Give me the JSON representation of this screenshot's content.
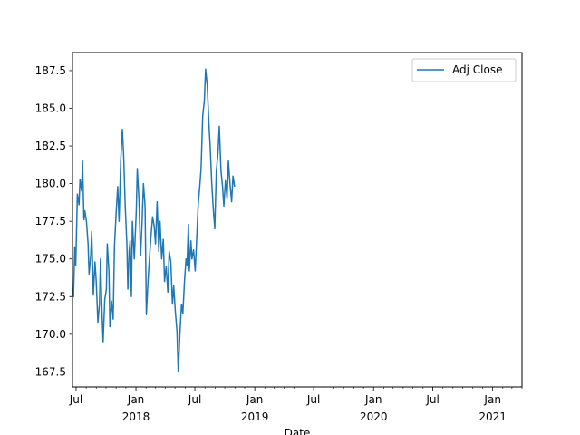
{
  "chart_data": {
    "type": "line",
    "title": "",
    "xlabel": "Date",
    "ylabel": "",
    "series_color": "#1f77b4",
    "legend": {
      "placement": "upper-right",
      "entries": [
        "Adj Close"
      ]
    },
    "grid": false,
    "xlim": [
      "2017-06-20",
      "2021-04-01"
    ],
    "ylim": [
      166.5,
      188.7
    ],
    "y_ticks": [
      {
        "value": 167.5,
        "label": "167.5"
      },
      {
        "value": 170.0,
        "label": "170.0"
      },
      {
        "value": 172.5,
        "label": "172.5"
      },
      {
        "value": 175.0,
        "label": "175.0"
      },
      {
        "value": 177.5,
        "label": "177.5"
      },
      {
        "value": 180.0,
        "label": "180.0"
      },
      {
        "value": 182.5,
        "label": "182.5"
      },
      {
        "value": 185.0,
        "label": "185.0"
      },
      {
        "value": 187.5,
        "label": "187.5"
      }
    ],
    "x_major_ticks": [
      {
        "date": "2017-07-01",
        "label": "Jul",
        "year": ""
      },
      {
        "date": "2018-01-01",
        "label": "Jan",
        "year": "2018"
      },
      {
        "date": "2018-07-01",
        "label": "Jul",
        "year": ""
      },
      {
        "date": "2019-01-01",
        "label": "Jan",
        "year": "2019"
      },
      {
        "date": "2019-07-01",
        "label": "Jul",
        "year": ""
      },
      {
        "date": "2020-01-01",
        "label": "Jan",
        "year": "2020"
      },
      {
        "date": "2020-07-01",
        "label": "Jul",
        "year": ""
      },
      {
        "date": "2021-01-01",
        "label": "Jan",
        "year": "2021"
      }
    ],
    "series": [
      {
        "name": "Adj Close",
        "x": [
          "2017-06-20",
          "2017-06-23",
          "2017-06-27",
          "2017-06-30",
          "2017-07-05",
          "2017-07-10",
          "2017-07-13",
          "2017-07-18",
          "2017-07-21",
          "2017-07-25",
          "2017-07-28",
          "2017-08-02",
          "2017-08-07",
          "2017-08-10",
          "2017-08-15",
          "2017-08-18",
          "2017-08-23",
          "2017-08-28",
          "2017-09-01",
          "2017-09-06",
          "2017-09-11",
          "2017-09-14",
          "2017-09-19",
          "2017-09-22",
          "2017-09-27",
          "2017-10-02",
          "2017-10-05",
          "2017-10-10",
          "2017-10-13",
          "2017-10-18",
          "2017-10-23",
          "2017-10-27",
          "2017-11-01",
          "2017-11-06",
          "2017-11-10",
          "2017-11-15",
          "2017-11-20",
          "2017-11-24",
          "2017-11-29",
          "2017-12-04",
          "2017-12-07",
          "2017-12-11",
          "2017-12-14",
          "2017-12-18",
          "2017-12-21",
          "2017-12-27",
          "2018-01-02",
          "2018-01-05",
          "2018-01-10",
          "2018-01-15",
          "2018-01-19",
          "2018-01-24",
          "2018-01-29",
          "2018-02-02",
          "2018-02-07",
          "2018-02-12",
          "2018-02-16",
          "2018-02-21",
          "2018-02-26",
          "2018-03-02",
          "2018-03-07",
          "2018-03-12",
          "2018-03-16",
          "2018-03-21",
          "2018-03-26",
          "2018-03-30",
          "2018-04-04",
          "2018-04-09",
          "2018-04-13",
          "2018-04-18",
          "2018-04-23",
          "2018-04-27",
          "2018-05-02",
          "2018-05-07",
          "2018-05-11",
          "2018-05-16",
          "2018-05-21",
          "2018-05-25",
          "2018-05-30",
          "2018-06-04",
          "2018-06-07",
          "2018-06-11",
          "2018-06-14",
          "2018-06-19",
          "2018-06-22",
          "2018-06-27",
          "2018-07-02",
          "2018-07-06",
          "2018-07-11",
          "2018-07-16",
          "2018-07-20",
          "2018-07-25",
          "2018-07-30",
          "2018-08-03",
          "2018-08-08",
          "2018-08-13",
          "2018-08-17",
          "2018-08-22",
          "2018-08-27",
          "2018-08-31",
          "2018-09-05",
          "2018-09-10",
          "2018-09-14",
          "2018-09-19",
          "2018-09-24",
          "2018-09-28",
          "2018-10-03",
          "2018-10-08",
          "2018-10-12",
          "2018-10-17",
          "2018-10-22",
          "2018-10-26",
          "2018-10-31"
        ],
        "y": [
          173.0,
          172.5,
          175.8,
          174.6,
          179.3,
          178.6,
          180.3,
          179.5,
          181.5,
          177.6,
          178.2,
          177.5,
          176.0,
          174.0,
          175.2,
          176.8,
          172.6,
          174.8,
          173.5,
          170.8,
          172.0,
          175.0,
          171.2,
          169.5,
          172.3,
          173.0,
          176.0,
          174.2,
          170.5,
          172.2,
          171.0,
          175.8,
          178.0,
          179.8,
          177.5,
          181.5,
          183.6,
          182.0,
          178.5,
          176.0,
          173.0,
          175.5,
          176.2,
          172.5,
          177.5,
          175.0,
          178.2,
          181.0,
          179.0,
          175.2,
          177.0,
          180.0,
          178.5,
          171.3,
          173.5,
          175.2,
          176.5,
          177.8,
          177.2,
          176.0,
          178.8,
          175.5,
          177.5,
          175.0,
          176.3,
          173.5,
          174.5,
          172.8,
          175.5,
          174.8,
          172.0,
          173.2,
          171.5,
          170.2,
          167.5,
          170.0,
          172.0,
          171.4,
          173.5,
          175.0,
          174.6,
          177.3,
          174.2,
          176.2,
          175.0,
          175.6,
          174.2,
          176.0,
          178.5,
          179.8,
          181.0,
          184.5,
          185.5,
          187.6,
          186.5,
          184.0,
          182.5,
          180.0,
          178.2,
          177.0,
          180.8,
          182.0,
          183.8,
          180.9,
          179.8,
          178.5,
          180.2,
          179.0,
          181.5,
          180.0,
          178.8,
          180.5,
          179.8
        ]
      }
    ]
  }
}
